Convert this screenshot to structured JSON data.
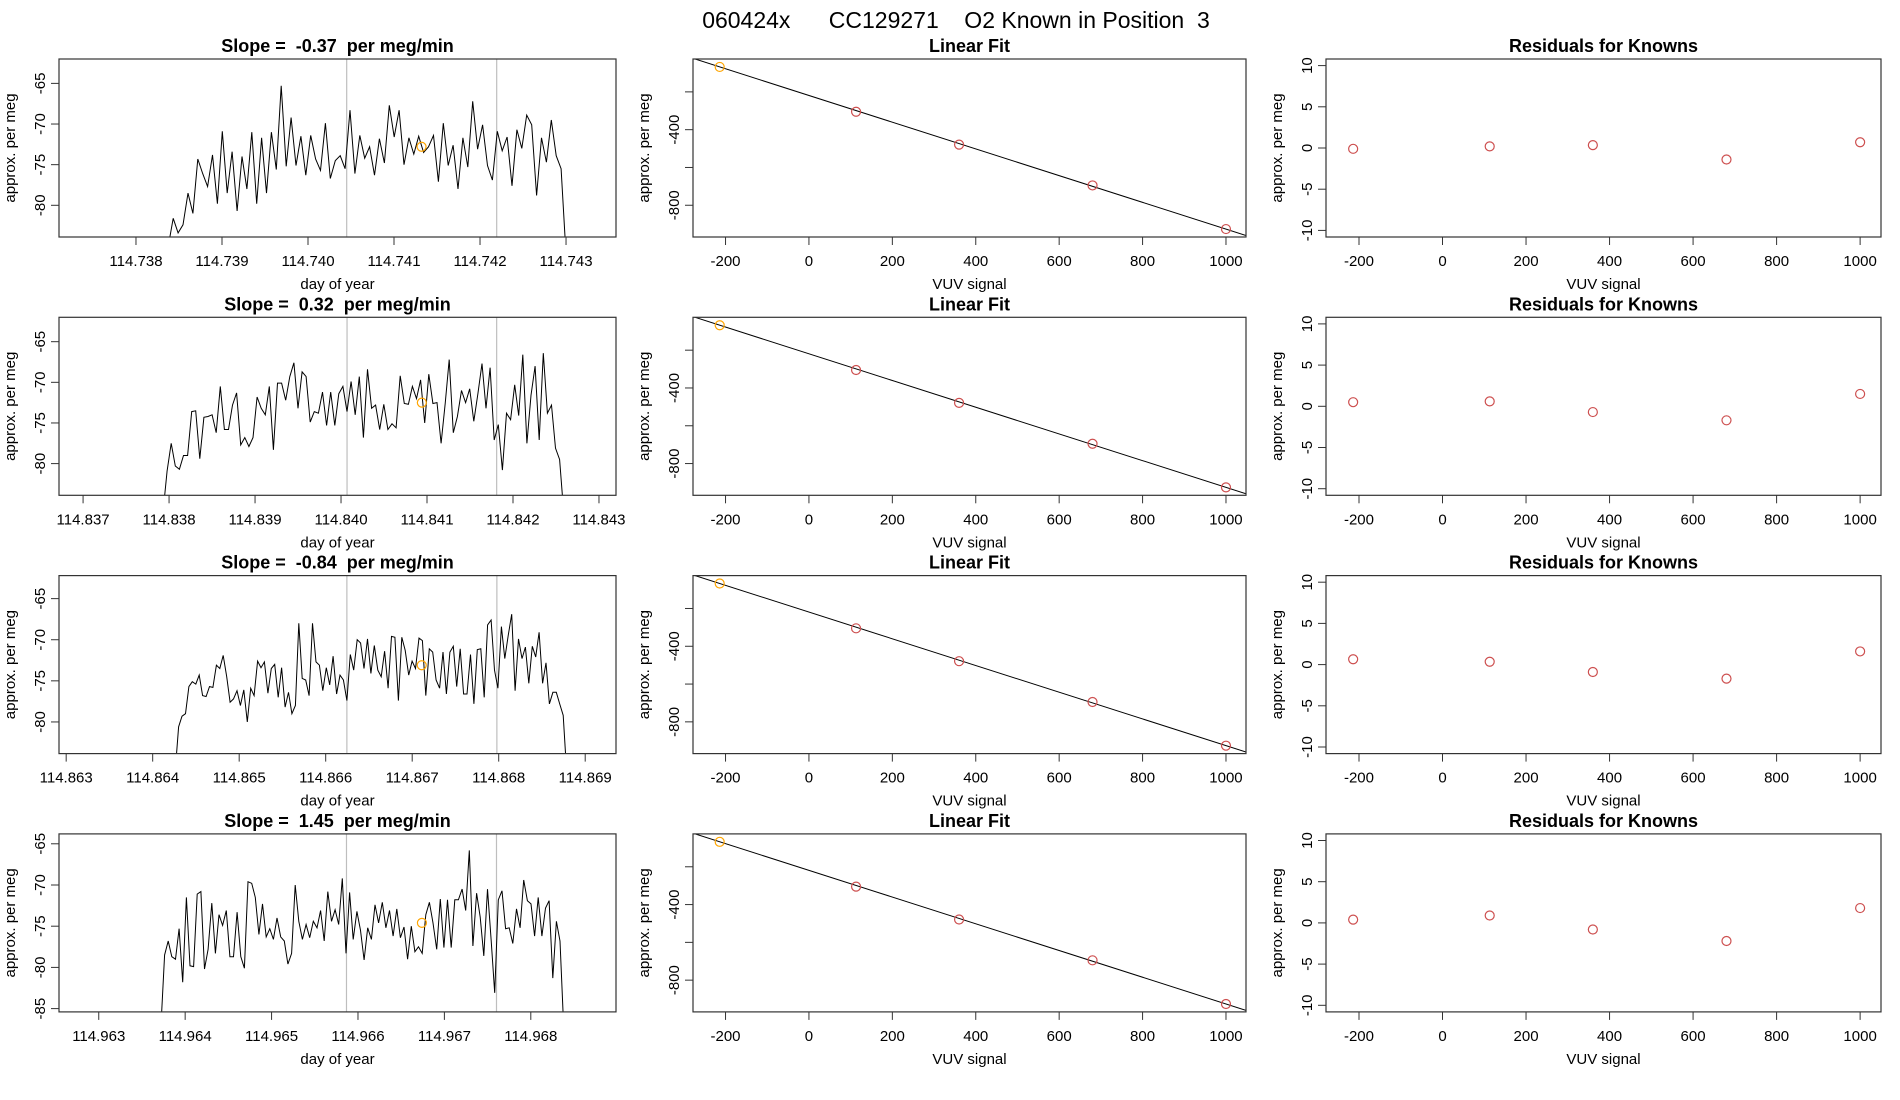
{
  "title": "060424x      CC129271    O2 Known in Position  3",
  "colors": {
    "series": "#000000",
    "highlight": "#FFA500",
    "points": "#CD4F4F",
    "vline": "#BEBEBE",
    "axis": "#333333"
  },
  "chart_data": [
    {
      "type": "line",
      "title": "Slope =  -0.37  per meg/min",
      "xlabel": "day of year",
      "ylabel": "approx. per meg",
      "xlim": [
        114.737105,
        114.743581
      ],
      "ylim": [
        -83.9,
        -62
      ],
      "xticks": [
        "114.738",
        "114.739",
        "114.740",
        "114.741",
        "114.742",
        "114.743"
      ],
      "yticks": [
        "-65",
        "-70",
        "-75",
        "-80"
      ],
      "x_first": 114.738376,
      "x_last": 114.743,
      "y": [
        -85,
        -81.6,
        -83.4,
        -82.4,
        -78.5,
        -81.0,
        -74.3,
        -76.1,
        -77.7,
        -73.8,
        -79.8,
        -70.9,
        -78.5,
        -73.4,
        -80.7,
        -74.0,
        -78.0,
        -71.0,
        -79.8,
        -71.7,
        -78.5,
        -71.0,
        -75.6,
        -65.3,
        -75.2,
        -69.2,
        -75.1,
        -71.5,
        -76.3,
        -71.4,
        -74.3,
        -75.7,
        -69.9,
        -76.7,
        -74.5,
        -73.9,
        -75.5,
        -68.3,
        -76.1,
        -71.4,
        -74.2,
        -72.8,
        -76.3,
        -71.8,
        -74.8,
        -67.7,
        -71.6,
        -68.3,
        -75.0,
        -71.7,
        -73.7,
        -71.5,
        -73.5,
        -72.8,
        -71.4,
        -77.1,
        -69.9,
        -75.1,
        -72.6,
        -78.0,
        -71.7,
        -75.3,
        -67.2,
        -73.1,
        -70.1,
        -75.1,
        -76.9,
        -70.9,
        -73.3,
        -71.6,
        -77.6,
        -70.7,
        -73.0,
        -68.9,
        -70.1,
        -78.8,
        -71.7,
        -74.7,
        -69.5,
        -73.9,
        -75.5,
        -86
      ],
      "vlines": [
        114.74045,
        114.742194
      ],
      "highlight": {
        "x": 114.74132,
        "y": -72.8
      }
    },
    {
      "type": "scatter",
      "title": "Linear Fit",
      "xlabel": "VUV signal",
      "ylabel": "approx. per meg",
      "xlim": [
        -278,
        1048
      ],
      "ylim": [
        -968,
        -26
      ],
      "xticks": [
        "-200",
        "0",
        "200",
        "400",
        "600",
        "800",
        "1000"
      ],
      "yticks": [
        -200,
        -400,
        -600,
        -800
      ],
      "ytick_labels": [
        "",
        "-400",
        "",
        "-800"
      ],
      "x": [
        -214,
        113,
        360,
        680,
        1000
      ],
      "y": [
        -68,
        -305,
        -479,
        -695,
        -926
      ],
      "highlight_index": 0,
      "fit_line": {
        "intercept": -219,
        "slope": -0.707
      }
    },
    {
      "type": "scatter",
      "title": "Residuals for Knowns",
      "xlabel": "VUV signal",
      "ylabel": "approx. per meg",
      "xlim": [
        -279,
        1050
      ],
      "ylim": [
        -10.8,
        10.8
      ],
      "xticks": [
        "-200",
        "0",
        "200",
        "400",
        "600",
        "800",
        "1000"
      ],
      "yticks": [
        "10",
        "5",
        "0",
        "-5",
        "-10"
      ],
      "x": [
        -214,
        113,
        360,
        680,
        1000
      ],
      "y": [
        -0.1,
        0.2,
        0.35,
        -1.4,
        0.7
      ]
    },
    {
      "type": "line",
      "title": "Slope =  0.32  per meg/min",
      "xlabel": "day of year",
      "ylabel": "approx. per meg",
      "xlim": [
        114.83672,
        114.843198
      ],
      "ylim": [
        -83.9,
        -62
      ],
      "xticks": [
        "114.837",
        "114.838",
        "114.839",
        "114.840",
        "114.841",
        "114.842",
        "114.843"
      ],
      "yticks": [
        "-65",
        "-70",
        "-75",
        "-80"
      ],
      "x_first": 114.83793,
      "x_last": 114.84259,
      "y": [
        -86,
        -80.9,
        -77.5,
        -80.3,
        -80.7,
        -79.0,
        -79.0,
        -73.6,
        -73.5,
        -79.4,
        -74.3,
        -74.2,
        -74.0,
        -76.2,
        -70.5,
        -75.8,
        -75.8,
        -72.8,
        -71.3,
        -77.7,
        -76.8,
        -77.9,
        -76.8,
        -71.8,
        -73.2,
        -74.0,
        -70.5,
        -78.3,
        -70.1,
        -70.1,
        -72.2,
        -69.3,
        -67.6,
        -73.2,
        -68.7,
        -69.3,
        -74.9,
        -73.6,
        -73.8,
        -71.2,
        -75.3,
        -71.2,
        -75.3,
        -71.4,
        -70.5,
        -73.6,
        -69.9,
        -74.0,
        -69.3,
        -76.8,
        -68.4,
        -73.2,
        -72.8,
        -75.8,
        -72.7,
        -75.8,
        -75.1,
        -75.6,
        -69.2,
        -72.6,
        -72.7,
        -70.5,
        -72.0,
        -69.7,
        -75.0,
        -69.0,
        -72.6,
        -72.5,
        -77.5,
        -72.6,
        -67.2,
        -76.2,
        -74.2,
        -71.0,
        -72.5,
        -70.8,
        -74.8,
        -71.4,
        -67.7,
        -73.2,
        -68.2,
        -77.1,
        -75.2,
        -80.8,
        -73.8,
        -74.6,
        -70.3,
        -74.1,
        -66.6,
        -77.5,
        -71.6,
        -68.0,
        -77.1,
        -66.4,
        -73.8,
        -72.8,
        -78.1,
        -79.5,
        -86
      ],
      "vlines": [
        114.84007,
        114.84181
      ],
      "highlight": {
        "x": 114.84094,
        "y": -72.5
      }
    },
    {
      "type": "scatter",
      "title": "Linear Fit",
      "xlabel": "VUV signal",
      "ylabel": "approx. per meg",
      "xlim": [
        -278,
        1048
      ],
      "ylim": [
        -968,
        -26
      ],
      "xticks": [
        "-200",
        "0",
        "200",
        "400",
        "600",
        "800",
        "1000"
      ],
      "yticks": [
        -200,
        -400,
        -600,
        -800
      ],
      "ytick_labels": [
        "",
        "-400",
        "",
        "-800"
      ],
      "x": [
        -214,
        113,
        360,
        680,
        1000
      ],
      "y": [
        -68,
        -305,
        -479,
        -695,
        -926
      ],
      "highlight_index": 0,
      "fit_line": {
        "intercept": -219,
        "slope": -0.707
      }
    },
    {
      "type": "scatter",
      "title": "Residuals for Knowns",
      "xlabel": "VUV signal",
      "ylabel": "approx. per meg",
      "xlim": [
        -279,
        1050
      ],
      "ylim": [
        -10.8,
        10.8
      ],
      "xticks": [
        "-200",
        "0",
        "200",
        "400",
        "600",
        "800",
        "1000"
      ],
      "yticks": [
        "10",
        "5",
        "0",
        "-5",
        "-10"
      ],
      "x": [
        -214,
        113,
        360,
        680,
        1000
      ],
      "y": [
        0.5,
        0.6,
        -0.7,
        -1.7,
        1.5
      ]
    },
    {
      "type": "line",
      "title": "Slope =  -0.84  per meg/min",
      "xlabel": "day of year",
      "ylabel": "approx. per meg",
      "xlim": [
        114.862917,
        114.869356
      ],
      "ylim": [
        -83.85,
        -62.2
      ],
      "xticks": [
        "114.863",
        "114.864",
        "114.865",
        "114.866",
        "114.867",
        "114.868",
        "114.869"
      ],
      "yticks": [
        "-65",
        "-70",
        "-75",
        "-80"
      ],
      "x_first": 114.86426,
      "x_last": 114.868785,
      "y": [
        -86,
        -80.6,
        -79.3,
        -79.0,
        -75.7,
        -75.1,
        -75.4,
        -74.3,
        -76.8,
        -76.9,
        -75.7,
        -75.8,
        -73.1,
        -73.5,
        -71.9,
        -74.5,
        -77.6,
        -77.2,
        -76.2,
        -78.0,
        -76.1,
        -80.0,
        -75.9,
        -76.8,
        -72.6,
        -73.4,
        -72.7,
        -76.5,
        -73.5,
        -73.0,
        -77.0,
        -73.4,
        -78.2,
        -76.4,
        -79.0,
        -78.0,
        -68.0,
        -74.7,
        -74.9,
        -76.8,
        -68.0,
        -72.7,
        -73.1,
        -76.2,
        -73.4,
        -75.5,
        -72.0,
        -76.6,
        -74.3,
        -74.9,
        -77.4,
        -71.8,
        -73.7,
        -70.0,
        -70.4,
        -73.5,
        -69.9,
        -74.1,
        -70.7,
        -73.7,
        -74.5,
        -71.4,
        -75.9,
        -69.6,
        -69.7,
        -77.4,
        -69.7,
        -71.3,
        -74.3,
        -72.6,
        -73.5,
        -69.8,
        -70.1,
        -76.8,
        -71.1,
        -71.5,
        -74.9,
        -75.9,
        -71.5,
        -76.6,
        -71.5,
        -70.8,
        -75.7,
        -71.1,
        -76.6,
        -76.6,
        -71.8,
        -77.8,
        -71.2,
        -71.1,
        -77.0,
        -68.2,
        -67.6,
        -73.7,
        -75.9,
        -68.4,
        -72.3,
        -69.5,
        -66.9,
        -76.2,
        -69.9,
        -72.3,
        -70.9,
        -75.3,
        -70.8,
        -72.1,
        -69.1,
        -75.3,
        -72.8,
        -77.8,
        -76.4,
        -76.4,
        -77.8,
        -79.2,
        -86
      ],
      "vlines": [
        114.866245,
        114.867979
      ],
      "highlight": {
        "x": 114.86711,
        "y": -73.1
      }
    },
    {
      "type": "scatter",
      "title": "Linear Fit",
      "xlabel": "VUV signal",
      "ylabel": "approx. per meg",
      "xlim": [
        -278,
        1048
      ],
      "ylim": [
        -968,
        -26
      ],
      "xticks": [
        "-200",
        "0",
        "200",
        "400",
        "600",
        "800",
        "1000"
      ],
      "yticks": [
        -200,
        -400,
        -600,
        -800
      ],
      "ytick_labels": [
        "",
        "-400",
        "",
        "-800"
      ],
      "x": [
        -214,
        113,
        360,
        680,
        1000
      ],
      "y": [
        -68,
        -305,
        -479,
        -695,
        -926
      ],
      "highlight_index": 0,
      "fit_line": {
        "intercept": -219,
        "slope": -0.707
      }
    },
    {
      "type": "scatter",
      "title": "Residuals for Knowns",
      "xlabel": "VUV signal",
      "ylabel": "approx. per meg",
      "xlim": [
        -279,
        1050
      ],
      "ylim": [
        -10.8,
        10.8
      ],
      "xticks": [
        "-200",
        "0",
        "200",
        "400",
        "600",
        "800",
        "1000"
      ],
      "yticks": [
        "10",
        "5",
        "0",
        "-5",
        "-10"
      ],
      "x": [
        -214,
        113,
        360,
        680,
        1000
      ],
      "y": [
        0.65,
        0.35,
        -0.9,
        -1.7,
        1.6
      ]
    },
    {
      "type": "line",
      "title": "Slope =  1.45  per meg/min",
      "xlabel": "day of year",
      "ylabel": "approx. per meg",
      "xlim": [
        114.96254,
        114.968986
      ],
      "ylim": [
        -85.4,
        -63.8
      ],
      "xticks": [
        "114.963",
        "114.964",
        "114.965",
        "114.966",
        "114.967",
        "114.968"
      ],
      "yticks": [
        "-65",
        "-70",
        "-75",
        "-80",
        "-85"
      ],
      "x_first": 114.96372,
      "x_last": 114.96838,
      "y": [
        -87,
        -78.5,
        -76.8,
        -78.7,
        -79.0,
        -75.3,
        -81.8,
        -71.5,
        -79.8,
        -79.9,
        -71.1,
        -70.8,
        -80.2,
        -77.8,
        -72.2,
        -78.3,
        -73.6,
        -74.9,
        -73.1,
        -78.7,
        -78.7,
        -73.3,
        -78.7,
        -80.1,
        -69.6,
        -69.8,
        -71.5,
        -76.0,
        -72.3,
        -76.3,
        -75.3,
        -76.6,
        -74.0,
        -76.3,
        -76.8,
        -79.6,
        -78.3,
        -70.0,
        -74.4,
        -76.6,
        -74.8,
        -76.4,
        -74.4,
        -75.2,
        -73.1,
        -76.8,
        -70.8,
        -74.4,
        -73.0,
        -74.8,
        -69.2,
        -78.3,
        -70.9,
        -76.6,
        -73.2,
        -75.5,
        -79.1,
        -75.2,
        -76.6,
        -72.4,
        -74.6,
        -72.1,
        -75.2,
        -73.1,
        -76.2,
        -72.9,
        -76.4,
        -75.1,
        -79.0,
        -75.0,
        -78.1,
        -77.5,
        -78.3,
        -73.6,
        -72.1,
        -74.6,
        -77.8,
        -71.7,
        -77.6,
        -71.8,
        -77.6,
        -71.8,
        -71.8,
        -70.5,
        -73.1,
        -65.8,
        -77.4,
        -71.0,
        -73.9,
        -78.6,
        -70.5,
        -76.6,
        -83.1,
        -71.8,
        -70.7,
        -75.3,
        -75.2,
        -77.1,
        -72.9,
        -75.2,
        -69.4,
        -71.9,
        -72.3,
        -76.2,
        -71.5,
        -76.2,
        -72.8,
        -71.9,
        -81.3,
        -74.4,
        -76.8,
        -87
      ],
      "vlines": [
        114.965867,
        114.967603
      ],
      "highlight": {
        "x": 114.96674,
        "y": -74.6
      }
    },
    {
      "type": "scatter",
      "title": "Linear Fit",
      "xlabel": "VUV signal",
      "ylabel": "approx. per meg",
      "xlim": [
        -278,
        1048
      ],
      "ylim": [
        -968,
        -26
      ],
      "xticks": [
        "-200",
        "0",
        "200",
        "400",
        "600",
        "800",
        "1000"
      ],
      "yticks": [
        -200,
        -400,
        -600,
        -800
      ],
      "ytick_labels": [
        "",
        "-400",
        "",
        "-800"
      ],
      "x": [
        -214,
        113,
        360,
        680,
        1000
      ],
      "y": [
        -68,
        -305,
        -479,
        -695,
        -926
      ],
      "highlight_index": 0,
      "fit_line": {
        "intercept": -219,
        "slope": -0.707
      }
    },
    {
      "type": "scatter",
      "title": "Residuals for Knowns",
      "xlabel": "VUV signal",
      "ylabel": "approx. per meg",
      "xlim": [
        -279,
        1050
      ],
      "ylim": [
        -10.8,
        10.8
      ],
      "xticks": [
        "-200",
        "0",
        "200",
        "400",
        "600",
        "800",
        "1000"
      ],
      "yticks": [
        "10",
        "5",
        "0",
        "-5",
        "-10"
      ],
      "x": [
        -214,
        113,
        360,
        680,
        1000
      ],
      "y": [
        0.4,
        0.9,
        -0.8,
        -2.2,
        1.8
      ]
    }
  ]
}
